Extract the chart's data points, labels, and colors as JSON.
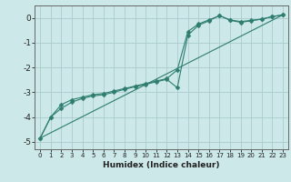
{
  "background_color": "#cce8e8",
  "grid_color": "#aacccc",
  "line_color": "#2e7d6e",
  "xlabel": "Humidex (Indice chaleur)",
  "xlim": [
    -0.5,
    23.5
  ],
  "ylim": [
    -5.3,
    0.5
  ],
  "yticks": [
    0,
    -1,
    -2,
    -3,
    -4,
    -5
  ],
  "xticks": [
    0,
    1,
    2,
    3,
    4,
    5,
    6,
    7,
    8,
    9,
    10,
    11,
    12,
    13,
    14,
    15,
    16,
    17,
    18,
    19,
    20,
    21,
    22,
    23
  ],
  "line1_x": [
    0,
    1,
    2,
    3,
    4,
    5,
    6,
    7,
    8,
    9,
    10,
    11,
    12,
    13,
    14,
    15,
    16,
    17,
    18,
    19,
    20,
    21,
    22,
    23
  ],
  "line1_y": [
    -4.85,
    -4.0,
    -3.5,
    -3.3,
    -3.2,
    -3.1,
    -3.05,
    -2.95,
    -2.85,
    -2.75,
    -2.65,
    -2.55,
    -2.45,
    -2.1,
    -0.55,
    -0.25,
    -0.08,
    0.08,
    -0.08,
    -0.15,
    -0.1,
    -0.05,
    0.05,
    0.12
  ],
  "line2_x": [
    0,
    1,
    2,
    3,
    4,
    5,
    6,
    7,
    8,
    9,
    10,
    11,
    12,
    13,
    14,
    15,
    16,
    17,
    18,
    19,
    20,
    21,
    22,
    23
  ],
  "line2_y": [
    -4.85,
    -4.0,
    -3.65,
    -3.4,
    -3.25,
    -3.15,
    -3.1,
    -3.0,
    -2.88,
    -2.78,
    -2.68,
    -2.58,
    -2.48,
    -2.82,
    -0.7,
    -0.3,
    -0.12,
    0.1,
    -0.1,
    -0.18,
    -0.12,
    -0.05,
    0.05,
    0.12
  ],
  "line3_x": [
    0,
    23
  ],
  "line3_y": [
    -4.85,
    0.12
  ]
}
